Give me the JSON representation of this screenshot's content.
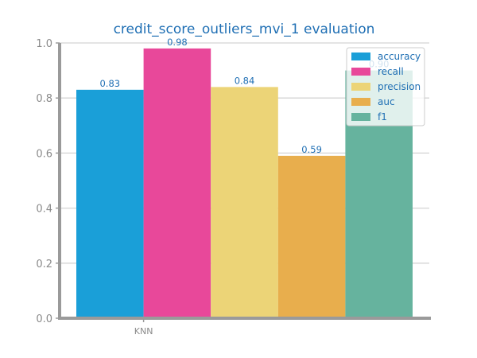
{
  "chart_data": {
    "type": "bar",
    "title": "credit_score_outliers_mvi_1 evaluation",
    "xlabel": "",
    "ylabel": "",
    "categories": [
      "KNN"
    ],
    "series": [
      {
        "name": "accuracy",
        "values": [
          0.83
        ],
        "label": "0.83",
        "color": "#1a9fd8"
      },
      {
        "name": "recall",
        "values": [
          0.98
        ],
        "label": "0.98",
        "color": "#e8489a"
      },
      {
        "name": "precision",
        "values": [
          0.84
        ],
        "label": "0.84",
        "color": "#ecd477"
      },
      {
        "name": "auc",
        "values": [
          0.59
        ],
        "label": "0.59",
        "color": "#e8ae4d"
      },
      {
        "name": "f1",
        "values": [
          0.9
        ],
        "label": "0.90",
        "color": "#66b39e"
      }
    ],
    "ylim": [
      0,
      1.0
    ],
    "yticks": [
      {
        "value": 0.0,
        "label": "0.0"
      },
      {
        "value": 0.2,
        "label": "0.2"
      },
      {
        "value": 0.4,
        "label": "0.4"
      },
      {
        "value": 0.6,
        "label": "0.6"
      },
      {
        "value": 0.8,
        "label": "0.8"
      },
      {
        "value": 1.0,
        "label": "1.0"
      }
    ],
    "grid": "horizontal",
    "legend_position": "top-right"
  }
}
